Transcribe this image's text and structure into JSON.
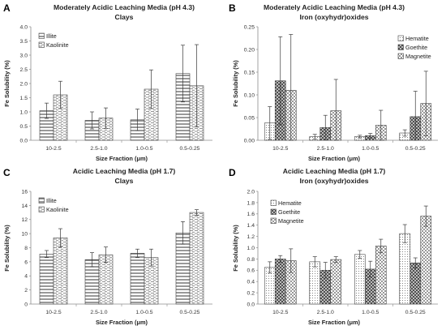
{
  "colors": {
    "axis": "#8c8c8c",
    "bar_stroke": "#404040",
    "error_bar": "#3a3a3a",
    "background": "#ffffff"
  },
  "chart_data": [
    {
      "letter": "A",
      "type": "bar",
      "title": "Moderately Acidic Leaching Media (pH 4.3)",
      "subtitle": "Clays",
      "xlabel": "Size Fraction (μm)",
      "ylabel": "Fe Solubility (%)",
      "categories": [
        "10-2.5",
        "2.5-1.0",
        "1.0-0.5",
        "0.5-0.25"
      ],
      "ylim": [
        0,
        4
      ],
      "yticks": [
        "0.0",
        "0.5",
        "1.0",
        "1.5",
        "2.0",
        "2.5",
        "3.0",
        "3.5",
        "4.0"
      ],
      "legend_position": "top-left",
      "series": [
        {
          "name": "Illite",
          "pattern": "hlines",
          "values": [
            1.04,
            0.7,
            0.72,
            2.35
          ],
          "err": [
            0.27,
            0.3,
            0.38,
            1.0
          ]
        },
        {
          "name": "Kaolinite",
          "pattern": "hdash",
          "values": [
            1.6,
            0.78,
            1.8,
            1.92
          ],
          "err": [
            0.48,
            0.36,
            0.68,
            1.45
          ]
        }
      ]
    },
    {
      "letter": "B",
      "type": "bar",
      "title": "Moderately Acidic Leaching Media (pH 4.3)",
      "subtitle": "Iron (oxyhydr)oxides",
      "xlabel": "Size Fraction (μm)",
      "ylabel": "Fe Solubility (%)",
      "categories": [
        "10-2.5",
        "2.5-1.0",
        "1.0-0.5",
        "0.5-0.25"
      ],
      "ylim": [
        0,
        0.25
      ],
      "yticks": [
        "0.00",
        "0.05",
        "0.10",
        "0.15",
        "0.20",
        "0.25"
      ],
      "legend_position": "top-right",
      "series": [
        {
          "name": "Hematite",
          "pattern": "dots",
          "values": [
            0.038,
            0.008,
            0.008,
            0.016
          ],
          "err": [
            0.036,
            0.005,
            0.003,
            0.007
          ]
        },
        {
          "name": "Goethite",
          "pattern": "cross",
          "values": [
            0.131,
            0.028,
            0.01,
            0.052
          ],
          "err": [
            0.097,
            0.027,
            0.005,
            0.056
          ]
        },
        {
          "name": "Magnetite",
          "pattern": "checker",
          "values": [
            0.11,
            0.065,
            0.033,
            0.081
          ],
          "err": [
            0.123,
            0.069,
            0.033,
            0.071
          ]
        }
      ]
    },
    {
      "letter": "C",
      "type": "bar",
      "title": "Acidic Leaching Media (pH 1.7)",
      "subtitle": "Clays",
      "xlabel": "Size Fraction (μm)",
      "ylabel": "Fe Solubility (%)",
      "categories": [
        "10-2.5",
        "2.5-1.0",
        "1.0-0.5",
        "0.5-0.25"
      ],
      "ylim": [
        0,
        16
      ],
      "yticks": [
        "0",
        "2",
        "4",
        "6",
        "8",
        "10",
        "12",
        "14",
        "16"
      ],
      "legend_position": "top-left",
      "series": [
        {
          "name": "Illite",
          "pattern": "hlines",
          "values": [
            7.1,
            6.3,
            7.2,
            10.1
          ],
          "err": [
            0.5,
            1.0,
            0.6,
            1.6
          ]
        },
        {
          "name": "Kaolinite",
          "pattern": "hdash",
          "values": [
            9.4,
            7.0,
            6.6,
            13.0
          ],
          "err": [
            1.3,
            1.1,
            1.2,
            0.4
          ]
        }
      ]
    },
    {
      "letter": "D",
      "type": "bar",
      "title": "Acidic Leaching Media (pH 1.7)",
      "subtitle": "Iron (oxyhydr)oxides",
      "xlabel": "Size Fraction (μm)",
      "ylabel": "Fe Solubility (%)",
      "categories": [
        "10-2.5",
        "2.5-1.0",
        "1.0-0.5",
        "0.5-0.25"
      ],
      "ylim": [
        0,
        2.0
      ],
      "yticks": [
        "0.0",
        "0.2",
        "0.4",
        "0.6",
        "0.8",
        "1.0",
        "1.2",
        "1.4",
        "1.6",
        "1.8",
        "2.0"
      ],
      "legend_position": "top-left",
      "series": [
        {
          "name": "Hematite",
          "pattern": "dots",
          "values": [
            0.65,
            0.75,
            0.88,
            1.25
          ],
          "err": [
            0.1,
            0.09,
            0.07,
            0.16
          ]
        },
        {
          "name": "Goethite",
          "pattern": "cross",
          "values": [
            0.8,
            0.6,
            0.62,
            0.73
          ],
          "err": [
            0.06,
            0.14,
            0.14,
            0.09
          ]
        },
        {
          "name": "Magnetite",
          "pattern": "checker",
          "values": [
            0.77,
            0.79,
            1.03,
            1.56
          ],
          "err": [
            0.21,
            0.05,
            0.12,
            0.18
          ]
        }
      ]
    }
  ]
}
